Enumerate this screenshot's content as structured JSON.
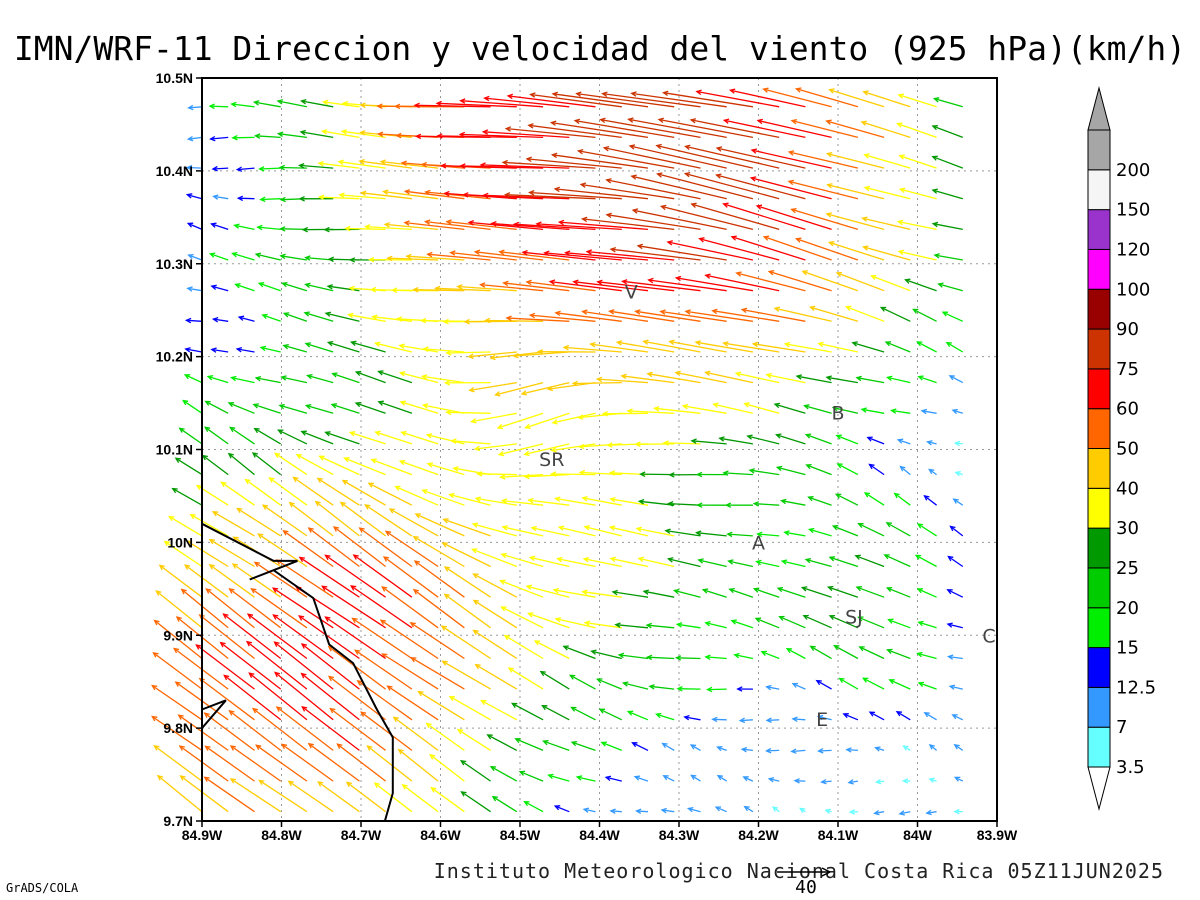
{
  "title": "IMN/WRF-11 Direccion y velocidad del viento (925 hPa)(km/h)",
  "footer": "Instituto Meteorologico Nacional Costa Rica 05Z11JUN2025",
  "credit": "GrADS/COLA",
  "reference_vector": {
    "label": "40",
    "speed": 40
  },
  "colorbar": {
    "levels": [
      "3.5",
      "7",
      "12.5",
      "15",
      "20",
      "25",
      "30",
      "40",
      "50",
      "60",
      "75",
      "90",
      "100",
      "120",
      "150",
      "200"
    ],
    "colors": [
      "#66ffff",
      "#3399ff",
      "#0000ff",
      "#00ee00",
      "#00cc00",
      "#009900",
      "#ffff00",
      "#ffcc00",
      "#ff6600",
      "#ff0000",
      "#cc3300",
      "#990000",
      "#ff00ff",
      "#9933cc",
      "#f5f5f5",
      "#a6a6a6"
    ]
  },
  "chart_data": {
    "type": "vector-field",
    "title": "IMN/WRF-11 Direccion y velocidad del viento (925 hPa)(km/h)",
    "x_ticks": [
      "84.9W",
      "84.8W",
      "84.7W",
      "84.6W",
      "84.5W",
      "84.4W",
      "84.3W",
      "84.2W",
      "84.1W",
      "84W",
      "83.9W"
    ],
    "y_ticks": [
      "9.7N",
      "9.8N",
      "9.9N",
      "10N",
      "10.1N",
      "10.2N",
      "10.3N",
      "10.4N",
      "10.5N"
    ],
    "xlim": [
      -84.9,
      -83.9
    ],
    "ylim": [
      9.7,
      10.5
    ],
    "grid": true,
    "cities": [
      {
        "label": "V",
        "lon": -84.36,
        "lat": 10.27
      },
      {
        "label": "B",
        "lon": -84.1,
        "lat": 10.14
      },
      {
        "label": "SR",
        "lon": -84.46,
        "lat": 10.09
      },
      {
        "label": "A",
        "lon": -84.2,
        "lat": 10.0
      },
      {
        "label": "SJ",
        "lon": -84.08,
        "lat": 9.92
      },
      {
        "label": "C",
        "lon": -83.91,
        "lat": 9.9
      },
      {
        "label": "E",
        "lon": -84.12,
        "lat": 9.81
      }
    ],
    "coastline": [
      [
        -84.9,
        10.02
      ],
      [
        -84.81,
        9.98
      ],
      [
        -84.78,
        9.98
      ],
      [
        -84.84,
        9.96
      ],
      [
        -84.81,
        9.97
      ],
      [
        -84.76,
        9.94
      ],
      [
        -84.74,
        9.89
      ],
      [
        -84.71,
        9.87
      ],
      [
        -84.68,
        9.82
      ],
      [
        -84.66,
        9.79
      ],
      [
        -84.66,
        9.73
      ],
      [
        -84.67,
        9.7
      ]
    ],
    "coastline2": [
      [
        -84.9,
        9.82
      ],
      [
        -84.87,
        9.83
      ],
      [
        -84.9,
        9.8
      ]
    ],
    "vector_grid": {
      "lon_start": -84.9,
      "lon_end": -83.92,
      "lon_step": 0.033,
      "lat_start": 9.71,
      "lat_end": 10.49,
      "lat_step": 0.033,
      "sources": [
        {
          "lon": -84.4,
          "lat": 10.46,
          "u": -65,
          "v": 3,
          "r": 0.32
        },
        {
          "lon": -84.15,
          "lat": 10.36,
          "u": -35,
          "v": 18,
          "r": 0.2
        },
        {
          "lon": -84.85,
          "lat": 9.8,
          "u": -35,
          "v": 30,
          "r": 0.28
        },
        {
          "lon": -84.62,
          "lat": 9.9,
          "u": -25,
          "v": 20,
          "r": 0.18
        },
        {
          "lon": -84.25,
          "lat": 10.22,
          "u": 0,
          "v": -3,
          "r": 0.2
        },
        {
          "lon": -84.05,
          "lat": 9.94,
          "u": -18,
          "v": 10,
          "r": 0.12
        },
        {
          "lon": -84.35,
          "lat": 9.95,
          "u": -16,
          "v": 2,
          "r": 0.15
        },
        {
          "lon": -84.47,
          "lat": 10.12,
          "u": -4,
          "v": -18,
          "r": 0.08
        },
        {
          "lon": -83.98,
          "lat": 10.1,
          "u": 6,
          "v": 1,
          "r": 0.15
        }
      ]
    }
  }
}
